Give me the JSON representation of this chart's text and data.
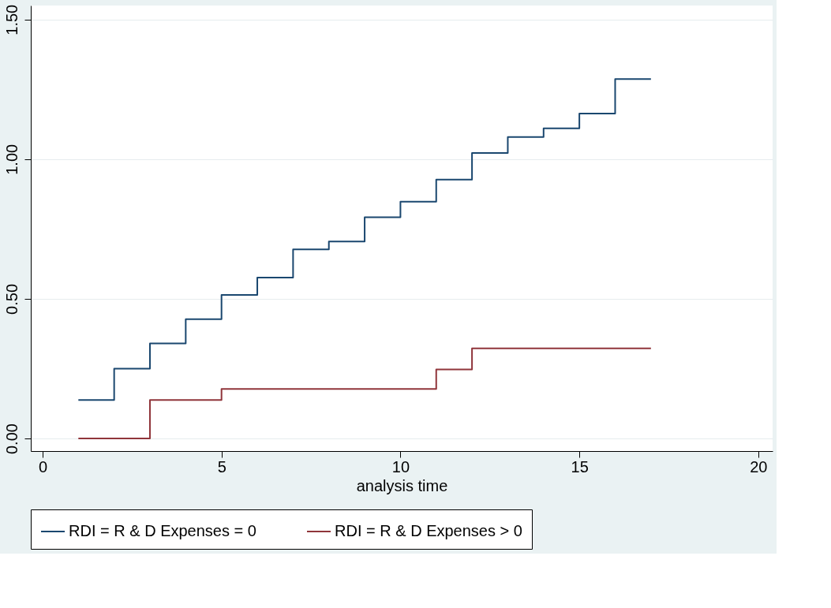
{
  "chart_data": {
    "type": "step",
    "xlabel": "analysis time",
    "x": [
      1,
      2,
      3,
      4,
      5,
      6,
      7,
      8,
      9,
      10,
      11,
      12,
      13,
      14,
      15,
      16,
      17
    ],
    "series": [
      {
        "name": "RDI = R & D Expenses = 0",
        "color": "#1a476f",
        "values": [
          0.138,
          0.25,
          0.34,
          0.427,
          0.514,
          0.576,
          0.677,
          0.705,
          0.792,
          0.848,
          0.927,
          1.022,
          1.079,
          1.11,
          1.163,
          1.287,
          1.287
        ]
      },
      {
        "name": "RDI = R & D Expenses > 0",
        "color": "#90353b",
        "values": [
          0,
          0,
          0.138,
          0.138,
          0.177,
          0.177,
          0.177,
          0.177,
          0.177,
          0.177,
          0.247,
          0.323,
          0.323,
          0.323,
          0.323,
          0.323,
          0.323
        ]
      }
    ],
    "xlim": [
      -0.33,
      20.4
    ],
    "xticks": [
      0,
      5,
      10,
      15,
      20
    ],
    "ylim": [
      -0.045,
      1.55
    ],
    "yticks": [
      {
        "value": 0,
        "label": "0.00"
      },
      {
        "value": 0.5,
        "label": "0.50"
      },
      {
        "value": 1,
        "label": "1.00"
      },
      {
        "value": 1.5,
        "label": "1.50"
      }
    ],
    "grid": "y",
    "legend": "bottom",
    "marker": "none",
    "line_style": "solid"
  }
}
